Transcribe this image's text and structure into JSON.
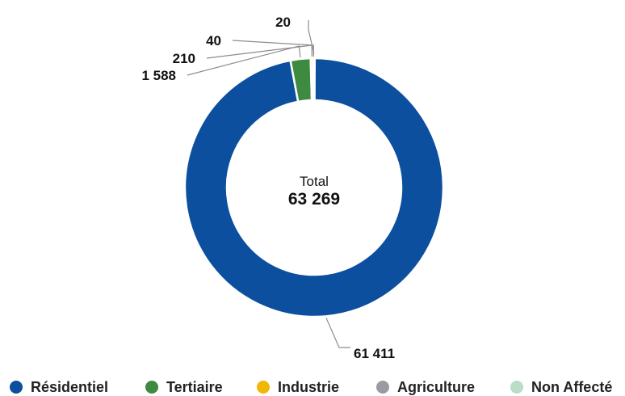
{
  "chart_data": {
    "type": "pie",
    "variant": "donut",
    "center": {
      "label": "Total",
      "value": "63 269"
    },
    "series": [
      {
        "name": "Résidentiel",
        "value": 61411,
        "label": "61 411",
        "color": "#0B4F9E"
      },
      {
        "name": "Tertiaire",
        "value": 1588,
        "label": "1 588",
        "color": "#3E8A41"
      },
      {
        "name": "Industrie",
        "value": 210,
        "label": "210",
        "color": "#F2B705"
      },
      {
        "name": "Agriculture",
        "value": 40,
        "label": "40",
        "color": "#9A9AA3"
      },
      {
        "name": "Non Affecté",
        "value": 20,
        "label": "20",
        "color": "#B9DDC9"
      }
    ],
    "legend_position": "bottom"
  }
}
